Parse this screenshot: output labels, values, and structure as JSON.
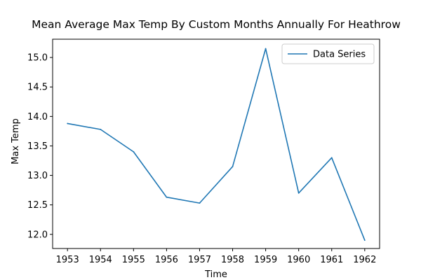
{
  "chart_data": {
    "type": "line",
    "title": "Mean Average Max Temp By Custom Months Annually For Heathrow",
    "xlabel": "Time",
    "ylabel": "Max Temp",
    "x": [
      1953,
      1954,
      1955,
      1956,
      1957,
      1958,
      1959,
      1960,
      1961,
      1962
    ],
    "x_ticks": [
      "1953",
      "1954",
      "1955",
      "1956",
      "1957",
      "1958",
      "1959",
      "1960",
      "1961",
      "1962"
    ],
    "y_ticks": [
      "12.0",
      "12.5",
      "13.0",
      "13.5",
      "14.0",
      "14.5",
      "15.0"
    ],
    "xlim": [
      1952.55,
      1962.45
    ],
    "ylim": [
      11.76,
      15.31
    ],
    "series": [
      {
        "name": "Data Series",
        "color": "#1f77b4",
        "values": [
          13.88,
          13.78,
          13.4,
          12.63,
          12.53,
          13.15,
          15.15,
          12.7,
          13.3,
          11.9
        ]
      }
    ],
    "legend": {
      "placement": "top-right"
    },
    "grid": false
  }
}
